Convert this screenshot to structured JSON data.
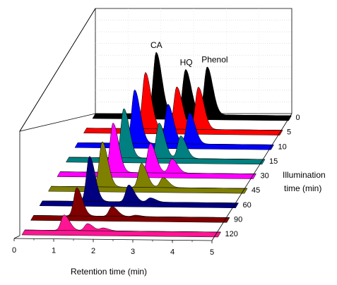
{
  "chart_data": {
    "type": "area",
    "xlabel": "Retention time (min)",
    "zlabel_lines": [
      "Illumination",
      "time (min)"
    ],
    "x_ticks": [
      "0",
      "1",
      "2",
      "3",
      "4",
      "5"
    ],
    "xlim": [
      0,
      5
    ],
    "peak_labels": [
      {
        "text": "CA",
        "x": 1.55,
        "series": "0"
      },
      {
        "text": "HQ",
        "x": 2.3,
        "series": "0"
      },
      {
        "text": "Phenol",
        "x": 2.85,
        "series": "0"
      }
    ],
    "series": [
      {
        "name": "0",
        "color": "#000000",
        "peaks": [
          {
            "x": 1.55,
            "h": 2.2
          },
          {
            "x": 2.3,
            "h": 1.6
          },
          {
            "x": 2.85,
            "h": 1.7
          }
        ]
      },
      {
        "name": "5",
        "color": "#ff0000",
        "peaks": [
          {
            "x": 1.5,
            "h": 2.0
          },
          {
            "x": 2.3,
            "h": 1.5
          },
          {
            "x": 2.85,
            "h": 1.5
          }
        ]
      },
      {
        "name": "10",
        "color": "#0000ff",
        "peaks": [
          {
            "x": 1.45,
            "h": 1.9
          },
          {
            "x": 2.3,
            "h": 1.4
          },
          {
            "x": 2.85,
            "h": 1.1
          }
        ]
      },
      {
        "name": "15",
        "color": "#008080",
        "peaks": [
          {
            "x": 1.4,
            "h": 1.75
          },
          {
            "x": 2.3,
            "h": 1.25
          },
          {
            "x": 2.85,
            "h": 0.8
          }
        ]
      },
      {
        "name": "30",
        "color": "#ff00ff",
        "peaks": [
          {
            "x": 1.35,
            "h": 1.75
          },
          {
            "x": 2.3,
            "h": 1.05
          },
          {
            "x": 2.85,
            "h": 0.5
          }
        ]
      },
      {
        "name": "45",
        "color": "#808000",
        "peaks": [
          {
            "x": 1.3,
            "h": 1.6
          },
          {
            "x": 2.3,
            "h": 0.85
          },
          {
            "x": 2.85,
            "h": 0.35
          }
        ]
      },
      {
        "name": "60",
        "color": "#000080",
        "peaks": [
          {
            "x": 1.2,
            "h": 1.6
          },
          {
            "x": 2.2,
            "h": 0.6
          },
          {
            "x": 2.75,
            "h": 0.15
          }
        ]
      },
      {
        "name": "90",
        "color": "#800000",
        "peaks": [
          {
            "x": 1.1,
            "h": 1.0
          },
          {
            "x": 2.0,
            "h": 0.35
          },
          {
            "x": 2.6,
            "h": 0.05
          }
        ]
      },
      {
        "name": "120",
        "color": "#ff1493",
        "peaks": [
          {
            "x": 1.0,
            "h": 0.55
          },
          {
            "x": 1.6,
            "h": 0.25
          },
          {
            "x": 2.0,
            "h": 0.1
          }
        ]
      }
    ]
  }
}
